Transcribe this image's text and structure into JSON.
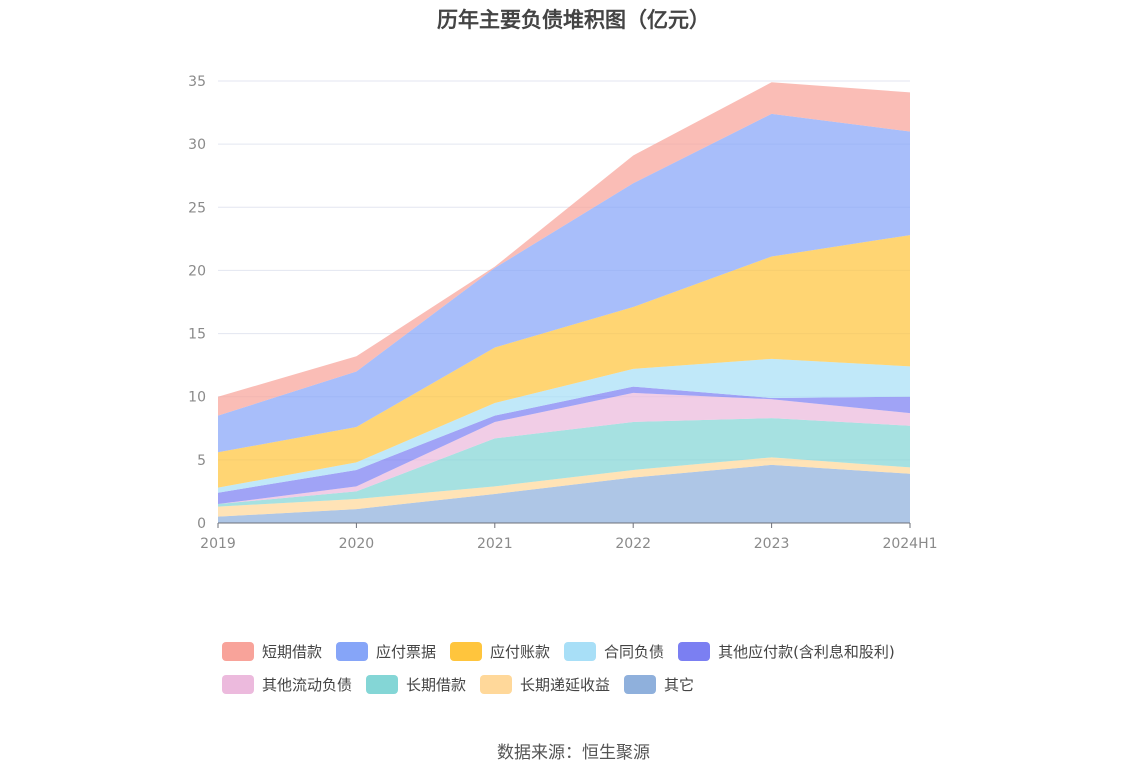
{
  "source": "数据来源：恒生聚源",
  "chart_data": {
    "type": "area",
    "stacked": true,
    "title": "历年主要负债堆积图（亿元）",
    "xlabel": "",
    "ylabel": "",
    "categories": [
      "2019",
      "2020",
      "2021",
      "2022",
      "2023",
      "2024H1"
    ],
    "ylim": [
      0,
      35
    ],
    "yticks": [
      0,
      5,
      10,
      15,
      20,
      25,
      30,
      35
    ],
    "grid": true,
    "legend_position": "bottom",
    "series": [
      {
        "name": "其它",
        "color": "#8fb0dc",
        "values": [
          0.5,
          1.1,
          2.3,
          3.6,
          4.6,
          3.9
        ]
      },
      {
        "name": "长期递延收益",
        "color": "#ffd89a",
        "values": [
          0.8,
          0.8,
          0.6,
          0.6,
          0.6,
          0.5
        ]
      },
      {
        "name": "长期借款",
        "color": "#84d6d6",
        "values": [
          0.2,
          0.6,
          3.8,
          3.8,
          3.1,
          3.3
        ]
      },
      {
        "name": "其他流动负债",
        "color": "#ecbadd",
        "values": [
          0.0,
          0.4,
          1.3,
          2.3,
          1.5,
          1.0
        ]
      },
      {
        "name": "其他应付款(含利息和股利)",
        "color": "#7b7ff2",
        "values": [
          0.9,
          1.3,
          0.5,
          0.5,
          0.1,
          1.3
        ]
      },
      {
        "name": "合同负债",
        "color": "#a8dff7",
        "values": [
          0.4,
          0.6,
          1.0,
          1.4,
          3.1,
          2.4
        ]
      },
      {
        "name": "应付账款",
        "color": "#ffc53d",
        "values": [
          2.8,
          2.8,
          4.4,
          4.9,
          8.1,
          10.4
        ]
      },
      {
        "name": "应付票据",
        "color": "#86a5f8",
        "values": [
          2.9,
          4.4,
          6.3,
          9.8,
          11.3,
          8.2
        ]
      },
      {
        "name": "短期借款",
        "color": "#f8a39a",
        "values": [
          1.5,
          1.2,
          0.1,
          2.2,
          2.5,
          3.1
        ]
      }
    ]
  }
}
